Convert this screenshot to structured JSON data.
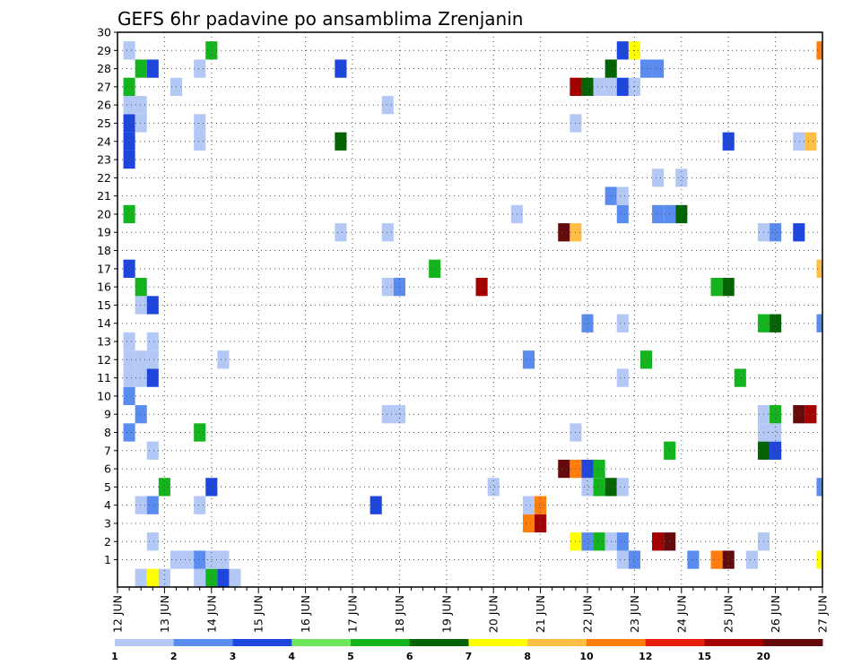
{
  "chart_data": {
    "type": "heatmap",
    "title": "GEFS 6hr padavine po ansamblima Zrenjanin",
    "xlabel": "",
    "ylabel": "",
    "x_tick_labels": [
      "12 JUN",
      "13 JUN",
      "14 JUN",
      "15 JUN",
      "16 JUN",
      "17 JUN",
      "18 JUN",
      "19 JUN",
      "20 JUN",
      "21 JUN",
      "22 JUN",
      "23 JUN",
      "24 JUN",
      "25 JUN",
      "26 JUN",
      "27 JUN"
    ],
    "xlim": [
      "12 JUN 00Z",
      "27 JUN 00Z"
    ],
    "y_tick_labels": [
      "1",
      "2",
      "3",
      "4",
      "5",
      "6",
      "7",
      "8",
      "9",
      "10",
      "11",
      "12",
      "13",
      "14",
      "15",
      "16",
      "17",
      "18",
      "19",
      "20",
      "21",
      "22",
      "23",
      "24",
      "25",
      "26",
      "27",
      "28",
      "29",
      "30"
    ],
    "ylim": [
      0,
      30
    ],
    "grid": true,
    "legend_placement": "bottom",
    "legend": {
      "labels": [
        "1",
        "2",
        "3",
        "4",
        "5",
        "6",
        "7",
        "8",
        "10",
        "12",
        "15",
        "20"
      ],
      "colors": [
        "#b4c8f5",
        "#5a8cf0",
        "#1e46dc",
        "#6ee65a",
        "#14b41e",
        "#046404",
        "#ffff00",
        "#ffbe46",
        "#ff7d0a",
        "#e61e0a",
        "#a50000",
        "#640a0a"
      ]
    },
    "cells": [
      {
        "t": "12 JUN 12Z",
        "member": 0,
        "value": 1
      },
      {
        "t": "12 JUN 18Z",
        "member": 0,
        "value": 7
      },
      {
        "t": "13 JUN 00Z",
        "member": 0,
        "value": 1
      },
      {
        "t": "13 JUN 18Z",
        "member": 0,
        "value": 1
      },
      {
        "t": "14 JUN 00Z",
        "member": 0,
        "value": 5
      },
      {
        "t": "14 JUN 06Z",
        "member": 0,
        "value": 3
      },
      {
        "t": "14 JUN 12Z",
        "member": 0,
        "value": 1
      },
      {
        "t": "13 JUN 06Z",
        "member": 1,
        "value": 1
      },
      {
        "t": "13 JUN 12Z",
        "member": 1,
        "value": 1
      },
      {
        "t": "13 JUN 18Z",
        "member": 1,
        "value": 2
      },
      {
        "t": "14 JUN 00Z",
        "member": 1,
        "value": 1
      },
      {
        "t": "14 JUN 06Z",
        "member": 1,
        "value": 1
      },
      {
        "t": "22 JUN 18Z",
        "member": 1,
        "value": 1
      },
      {
        "t": "23 JUN 00Z",
        "member": 1,
        "value": 2
      },
      {
        "t": "24 JUN 06Z",
        "member": 1,
        "value": 2
      },
      {
        "t": "24 JUN 18Z",
        "member": 1,
        "value": 10
      },
      {
        "t": "25 JUN 00Z",
        "member": 1,
        "value": 20
      },
      {
        "t": "25 JUN 12Z",
        "member": 1,
        "value": 1
      },
      {
        "t": "27 JUN 00Z",
        "member": 1,
        "value": 7
      },
      {
        "t": "12 JUN 18Z",
        "member": 2,
        "value": 1
      },
      {
        "t": "21 JUN 18Z",
        "member": 2,
        "value": 7
      },
      {
        "t": "22 JUN 00Z",
        "member": 2,
        "value": 2
      },
      {
        "t": "22 JUN 06Z",
        "member": 2,
        "value": 5
      },
      {
        "t": "22 JUN 12Z",
        "member": 2,
        "value": 1
      },
      {
        "t": "22 JUN 18Z",
        "member": 2,
        "value": 2
      },
      {
        "t": "23 JUN 12Z",
        "member": 2,
        "value": 15
      },
      {
        "t": "23 JUN 18Z",
        "member": 2,
        "value": 20
      },
      {
        "t": "25 JUN 18Z",
        "member": 2,
        "value": 1
      },
      {
        "t": "20 JUN 18Z",
        "member": 3,
        "value": 10
      },
      {
        "t": "21 JUN 00Z",
        "member": 3,
        "value": 15
      },
      {
        "t": "12 JUN 12Z",
        "member": 4,
        "value": 1
      },
      {
        "t": "12 JUN 18Z",
        "member": 4,
        "value": 2
      },
      {
        "t": "13 JUN 18Z",
        "member": 4,
        "value": 1
      },
      {
        "t": "17 JUN 12Z",
        "member": 4,
        "value": 3
      },
      {
        "t": "20 JUN 18Z",
        "member": 4,
        "value": 1
      },
      {
        "t": "21 JUN 00Z",
        "member": 4,
        "value": 10
      },
      {
        "t": "13 JUN 00Z",
        "member": 5,
        "value": 5
      },
      {
        "t": "14 JUN 00Z",
        "member": 5,
        "value": 3
      },
      {
        "t": "20 JUN 00Z",
        "member": 5,
        "value": 1
      },
      {
        "t": "22 JUN 00Z",
        "member": 5,
        "value": 1
      },
      {
        "t": "22 JUN 06Z",
        "member": 5,
        "value": 5
      },
      {
        "t": "22 JUN 12Z",
        "member": 5,
        "value": 6
      },
      {
        "t": "22 JUN 18Z",
        "member": 5,
        "value": 1
      },
      {
        "t": "27 JUN 00Z",
        "member": 5,
        "value": 2
      },
      {
        "t": "21 JUN 12Z",
        "member": 6,
        "value": 20
      },
      {
        "t": "21 JUN 18Z",
        "member": 6,
        "value": 10
      },
      {
        "t": "22 JUN 00Z",
        "member": 6,
        "value": 3
      },
      {
        "t": "22 JUN 06Z",
        "member": 6,
        "value": 5
      },
      {
        "t": "12 JUN 18Z",
        "member": 7,
        "value": 1
      },
      {
        "t": "23 JUN 18Z",
        "member": 7,
        "value": 5
      },
      {
        "t": "25 JUN 18Z",
        "member": 7,
        "value": 6
      },
      {
        "t": "26 JUN 00Z",
        "member": 7,
        "value": 3
      },
      {
        "t": "12 JUN 06Z",
        "member": 8,
        "value": 2
      },
      {
        "t": "13 JUN 18Z",
        "member": 8,
        "value": 5
      },
      {
        "t": "21 JUN 18Z",
        "member": 8,
        "value": 1
      },
      {
        "t": "25 JUN 18Z",
        "member": 8,
        "value": 1
      },
      {
        "t": "26 JUN 00Z",
        "member": 8,
        "value": 1
      },
      {
        "t": "12 JUN 12Z",
        "member": 9,
        "value": 2
      },
      {
        "t": "17 JUN 18Z",
        "member": 9,
        "value": 1
      },
      {
        "t": "18 JUN 00Z",
        "member": 9,
        "value": 1
      },
      {
        "t": "25 JUN 18Z",
        "member": 9,
        "value": 1
      },
      {
        "t": "26 JUN 00Z",
        "member": 9,
        "value": 5
      },
      {
        "t": "26 JUN 12Z",
        "member": 9,
        "value": 20
      },
      {
        "t": "26 JUN 18Z",
        "member": 9,
        "value": 15
      },
      {
        "t": "12 JUN 06Z",
        "member": 10,
        "value": 2
      },
      {
        "t": "12 JUN 06Z",
        "member": 11,
        "value": 1
      },
      {
        "t": "12 JUN 12Z",
        "member": 11,
        "value": 1
      },
      {
        "t": "12 JUN 18Z",
        "member": 11,
        "value": 3
      },
      {
        "t": "22 JUN 18Z",
        "member": 11,
        "value": 1
      },
      {
        "t": "25 JUN 06Z",
        "member": 11,
        "value": 5
      },
      {
        "t": "12 JUN 06Z",
        "member": 12,
        "value": 1
      },
      {
        "t": "12 JUN 12Z",
        "member": 12,
        "value": 1
      },
      {
        "t": "12 JUN 18Z",
        "member": 12,
        "value": 1
      },
      {
        "t": "14 JUN 06Z",
        "member": 12,
        "value": 1
      },
      {
        "t": "20 JUN 18Z",
        "member": 12,
        "value": 2
      },
      {
        "t": "23 JUN 06Z",
        "member": 12,
        "value": 5
      },
      {
        "t": "12 JUN 06Z",
        "member": 13,
        "value": 1
      },
      {
        "t": "12 JUN 18Z",
        "member": 13,
        "value": 1
      },
      {
        "t": "22 JUN 00Z",
        "member": 14,
        "value": 2
      },
      {
        "t": "22 JUN 18Z",
        "member": 14,
        "value": 1
      },
      {
        "t": "25 JUN 18Z",
        "member": 14,
        "value": 5
      },
      {
        "t": "26 JUN 00Z",
        "member": 14,
        "value": 6
      },
      {
        "t": "27 JUN 00Z",
        "member": 14,
        "value": 2
      },
      {
        "t": "12 JUN 12Z",
        "member": 15,
        "value": 1
      },
      {
        "t": "12 JUN 18Z",
        "member": 15,
        "value": 3
      },
      {
        "t": "12 JUN 12Z",
        "member": 16,
        "value": 5
      },
      {
        "t": "17 JUN 18Z",
        "member": 16,
        "value": 1
      },
      {
        "t": "18 JUN 00Z",
        "member": 16,
        "value": 2
      },
      {
        "t": "19 JUN 18Z",
        "member": 16,
        "value": 15
      },
      {
        "t": "24 JUN 18Z",
        "member": 16,
        "value": 5
      },
      {
        "t": "25 JUN 00Z",
        "member": 16,
        "value": 6
      },
      {
        "t": "12 JUN 06Z",
        "member": 17,
        "value": 3
      },
      {
        "t": "18 JUN 18Z",
        "member": 17,
        "value": 5
      },
      {
        "t": "27 JUN 00Z",
        "member": 17,
        "value": 8
      },
      {
        "t": "16 JUN 18Z",
        "member": 19,
        "value": 1
      },
      {
        "t": "17 JUN 18Z",
        "member": 19,
        "value": 1
      },
      {
        "t": "21 JUN 12Z",
        "member": 19,
        "value": 20
      },
      {
        "t": "21 JUN 18Z",
        "member": 19,
        "value": 8
      },
      {
        "t": "25 JUN 18Z",
        "member": 19,
        "value": 1
      },
      {
        "t": "26 JUN 00Z",
        "member": 19,
        "value": 2
      },
      {
        "t": "26 JUN 12Z",
        "member": 19,
        "value": 3
      },
      {
        "t": "12 JUN 06Z",
        "member": 20,
        "value": 5
      },
      {
        "t": "20 JUN 12Z",
        "member": 20,
        "value": 1
      },
      {
        "t": "22 JUN 18Z",
        "member": 20,
        "value": 2
      },
      {
        "t": "23 JUN 12Z",
        "member": 20,
        "value": 2
      },
      {
        "t": "23 JUN 18Z",
        "member": 20,
        "value": 2
      },
      {
        "t": "24 JUN 00Z",
        "member": 20,
        "value": 6
      },
      {
        "t": "22 JUN 12Z",
        "member": 21,
        "value": 2
      },
      {
        "t": "22 JUN 18Z",
        "member": 21,
        "value": 1
      },
      {
        "t": "23 JUN 12Z",
        "member": 22,
        "value": 1
      },
      {
        "t": "24 JUN 00Z",
        "member": 22,
        "value": 1
      },
      {
        "t": "12 JUN 06Z",
        "member": 23,
        "value": 3
      },
      {
        "t": "12 JUN 06Z",
        "member": 24,
        "value": 3
      },
      {
        "t": "13 JUN 18Z",
        "member": 24,
        "value": 1
      },
      {
        "t": "16 JUN 18Z",
        "member": 24,
        "value": 6
      },
      {
        "t": "25 JUN 00Z",
        "member": 24,
        "value": 3
      },
      {
        "t": "26 JUN 12Z",
        "member": 24,
        "value": 1
      },
      {
        "t": "26 JUN 18Z",
        "member": 24,
        "value": 8
      },
      {
        "t": "12 JUN 06Z",
        "member": 25,
        "value": 3
      },
      {
        "t": "12 JUN 12Z",
        "member": 25,
        "value": 1
      },
      {
        "t": "13 JUN 18Z",
        "member": 25,
        "value": 1
      },
      {
        "t": "21 JUN 18Z",
        "member": 25,
        "value": 1
      },
      {
        "t": "12 JUN 06Z",
        "member": 26,
        "value": 1
      },
      {
        "t": "12 JUN 12Z",
        "member": 26,
        "value": 1
      },
      {
        "t": "17 JUN 18Z",
        "member": 26,
        "value": 1
      },
      {
        "t": "12 JUN 06Z",
        "member": 27,
        "value": 5
      },
      {
        "t": "13 JUN 06Z",
        "member": 27,
        "value": 1
      },
      {
        "t": "21 JUN 18Z",
        "member": 27,
        "value": 15
      },
      {
        "t": "22 JUN 00Z",
        "member": 27,
        "value": 6
      },
      {
        "t": "22 JUN 06Z",
        "member": 27,
        "value": 1
      },
      {
        "t": "22 JUN 12Z",
        "member": 27,
        "value": 1
      },
      {
        "t": "22 JUN 18Z",
        "member": 27,
        "value": 3
      },
      {
        "t": "23 JUN 00Z",
        "member": 27,
        "value": 1
      },
      {
        "t": "12 JUN 12Z",
        "member": 28,
        "value": 5
      },
      {
        "t": "12 JUN 18Z",
        "member": 28,
        "value": 3
      },
      {
        "t": "13 JUN 18Z",
        "member": 28,
        "value": 1
      },
      {
        "t": "16 JUN 18Z",
        "member": 28,
        "value": 3
      },
      {
        "t": "22 JUN 12Z",
        "member": 28,
        "value": 6
      },
      {
        "t": "23 JUN 06Z",
        "member": 28,
        "value": 2
      },
      {
        "t": "23 JUN 12Z",
        "member": 28,
        "value": 2
      },
      {
        "t": "12 JUN 06Z",
        "member": 29,
        "value": 1
      },
      {
        "t": "14 JUN 00Z",
        "member": 29,
        "value": 5
      },
      {
        "t": "22 JUN 18Z",
        "member": 29,
        "value": 3
      },
      {
        "t": "23 JUN 00Z",
        "member": 29,
        "value": 7
      },
      {
        "t": "27 JUN 00Z",
        "member": 29,
        "value": 10
      }
    ]
  }
}
